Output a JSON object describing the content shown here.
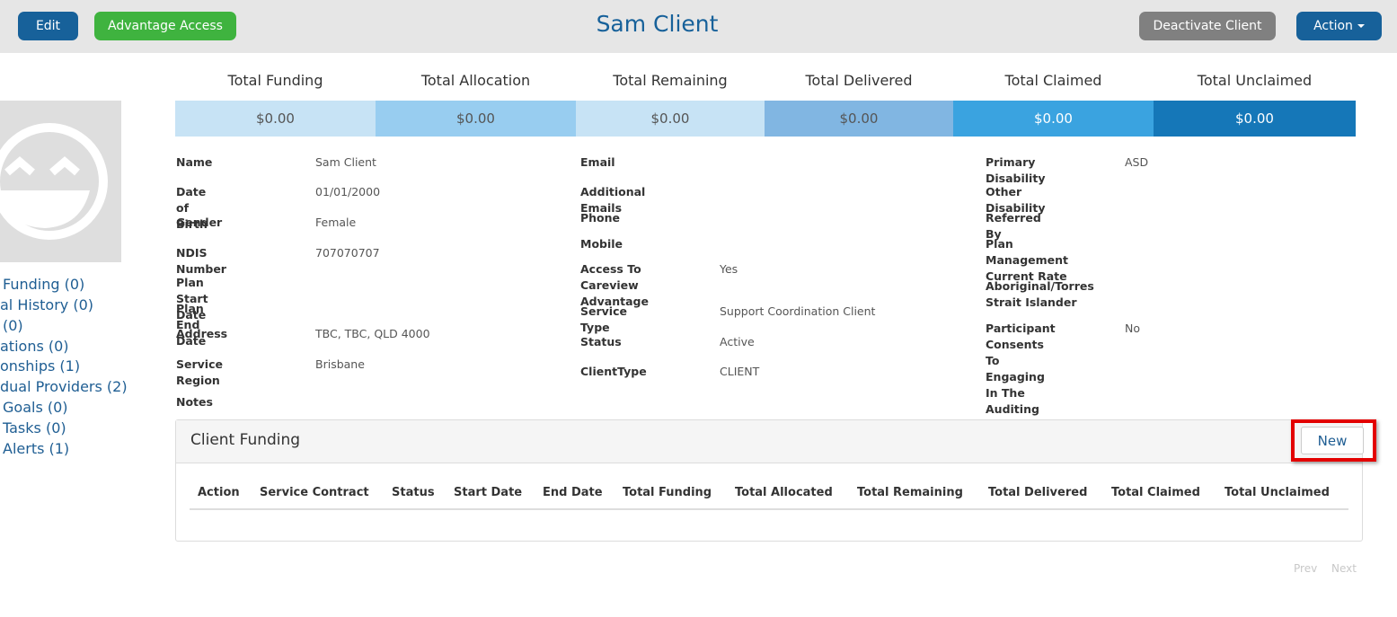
{
  "header": {
    "edit_label": "Edit",
    "advantage_label": "Advantage Access",
    "title": "Sam Client",
    "deactivate_label": "Deactivate Client",
    "action_label": "Action"
  },
  "sidenav": [
    "Funding (0)",
    "al History (0)",
    "(0)",
    "ations (0)",
    "onships (1)",
    "dual Providers (2)",
    "Goals (0)",
    "Tasks (0)",
    "Alerts (1)"
  ],
  "totals": [
    {
      "label": "Total Funding",
      "value": "$0.00",
      "bg": "#c7e3f5",
      "fg": "#555555"
    },
    {
      "label": "Total Allocation",
      "value": "$0.00",
      "bg": "#98cdf0",
      "fg": "#555555"
    },
    {
      "label": "Total Remaining",
      "value": "$0.00",
      "bg": "#c7e3f5",
      "fg": "#555555"
    },
    {
      "label": "Total Delivered",
      "value": "$0.00",
      "bg": "#81b6e2",
      "fg": "#555555"
    },
    {
      "label": "Total Claimed",
      "value": "$0.00",
      "bg": "#3aa3e0",
      "fg": "#ffffff"
    },
    {
      "label": "Total Unclaimed",
      "value": "$0.00",
      "bg": "#1577b8",
      "fg": "#ffffff"
    }
  ],
  "details": {
    "col1": [
      {
        "key": "Name",
        "value": "Sam Client"
      },
      {
        "key": "Date of Birth",
        "value": "01/01/2000"
      },
      {
        "key": "Gender",
        "value": "Female"
      },
      {
        "key": "NDIS Number",
        "value": "707070707"
      },
      {
        "key": "Plan Start Date",
        "value": ""
      },
      {
        "key": "Plan End Date",
        "value": ""
      },
      {
        "key": "Address",
        "value": "TBC, TBC, QLD 4000"
      },
      {
        "key": "Service Region",
        "value": "Brisbane"
      },
      {
        "key": "Notes",
        "value": ""
      }
    ],
    "col2": [
      {
        "key": "Email",
        "value": ""
      },
      {
        "key": "Additional Emails",
        "value": ""
      },
      {
        "key": "Phone",
        "value": ""
      },
      {
        "key": "Mobile",
        "value": ""
      },
      {
        "key": "Access To Careview\nAdvantage",
        "value": "Yes"
      },
      {
        "key": "Service Type",
        "value": "Support Coordination Client"
      },
      {
        "key": "Status",
        "value": "Active"
      },
      {
        "key": "ClientType",
        "value": "CLIENT"
      }
    ],
    "col3": [
      {
        "key": "Primary Disability",
        "value": "ASD"
      },
      {
        "key": "Other Disability",
        "value": ""
      },
      {
        "key": "Referred By",
        "value": ""
      },
      {
        "key": "Plan Management\nCurrent Rate",
        "value": ""
      },
      {
        "key": "Aboriginal/Torres\nStrait Islander",
        "value": ""
      },
      {
        "key": "Participant Consents\nTo Engaging In The\nAuditing Process",
        "value": "No"
      }
    ]
  },
  "funding_panel": {
    "title": "Client Funding",
    "new_label": "New",
    "columns": [
      "Action",
      "Service Contract",
      "Status",
      "Start Date",
      "End Date",
      "Total Funding",
      "Total Allocated",
      "Total Remaining",
      "Total Delivered",
      "Total Claimed",
      "Total Unclaimed"
    ]
  },
  "pager": {
    "prev": "Prev",
    "next": "Next"
  },
  "colors": {
    "brand_blue": "#17619a",
    "success": "#3fb33f",
    "highlight": "#e30000"
  }
}
